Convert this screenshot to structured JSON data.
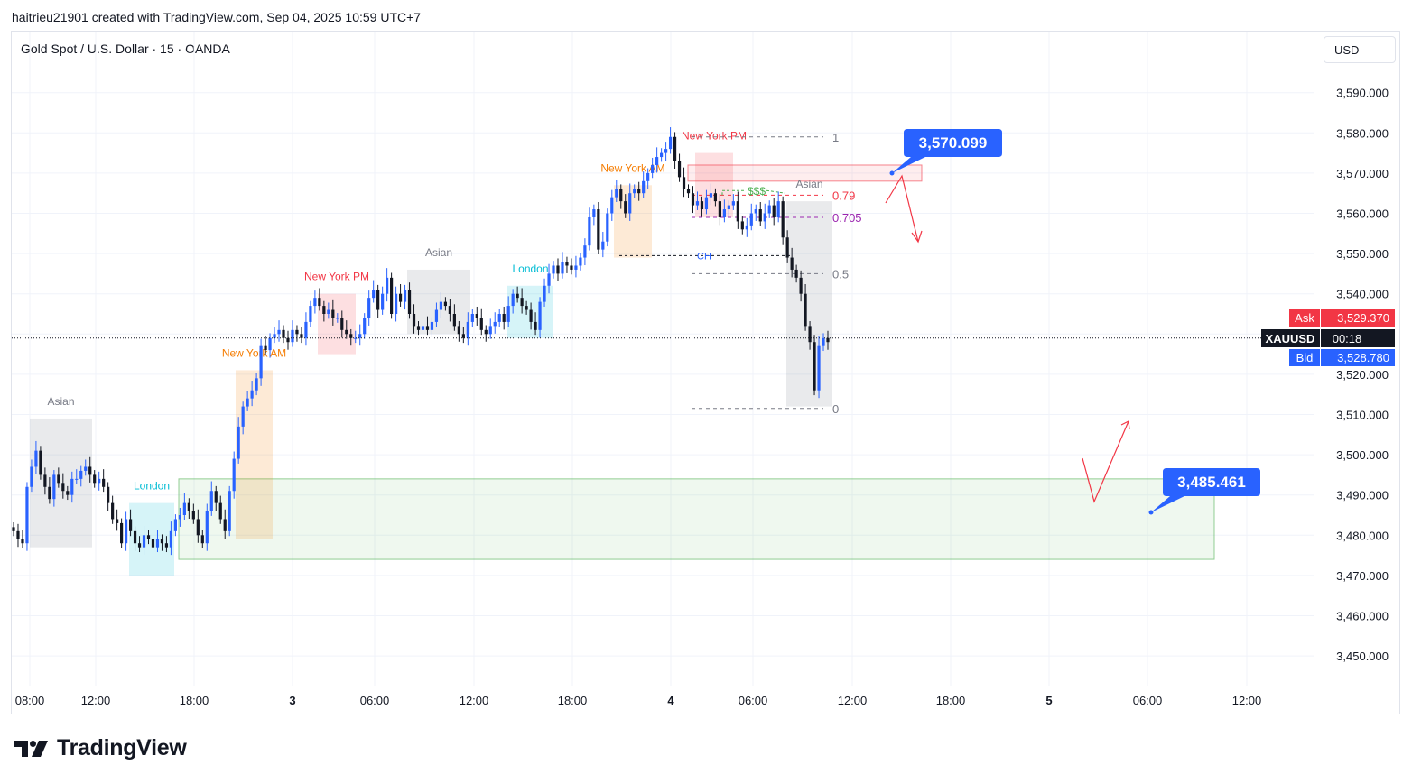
{
  "header": {
    "text": "haitrieu21901 created with TradingView.com, Sep 04, 2025 10:59 UTC+7"
  },
  "symbol": {
    "title": "Gold Spot / U.S. Dollar · 15 · OANDA"
  },
  "currency_button": {
    "label": "USD"
  },
  "logo": {
    "text": "TradingView"
  },
  "colors": {
    "up": "#2962ff",
    "down": "#131722",
    "ask": "#f23645",
    "bid": "#2962ff",
    "label_bg": "#2962ff",
    "demand_zone": "#4caf50",
    "supply_zone": "#f23645"
  },
  "chart_data": {
    "type": "candlestick",
    "y_axis": {
      "min": 3440,
      "max": 3600,
      "ticks": [
        3450,
        3460,
        3470,
        3480,
        3490,
        3500,
        3510,
        3520,
        3540,
        3550,
        3560,
        3570,
        3580,
        3590
      ],
      "tick_labels": [
        "3,450.000",
        "3,460.000",
        "3,470.000",
        "3,480.000",
        "3,490.000",
        "3,500.000",
        "3,510.000",
        "3,520.000",
        "3,540.000",
        "3,550.000",
        "3,560.000",
        "3,570.000",
        "3,580.000",
        "3,590.000"
      ]
    },
    "x_axis": {
      "labels": [
        "08:00",
        "12:00",
        "18:00",
        "3",
        "06:00",
        "12:00",
        "18:00",
        "4",
        "06:00",
        "12:00",
        "18:00",
        "5",
        "06:00",
        "12:00"
      ],
      "bold_labels": [
        "3",
        "4",
        "5"
      ]
    },
    "current_price": 3529.0,
    "ask": {
      "label": "Ask",
      "value": "3,529.370"
    },
    "bid": {
      "label": "Bid",
      "value": "3,528.780"
    },
    "symbol_tag": {
      "label": "XAUUSD",
      "countdown": "00:18"
    },
    "price_callouts": [
      {
        "text": "3,570.099",
        "price": 3570.099
      },
      {
        "text": "3,485.461",
        "price": 3485.461
      }
    ],
    "zones": [
      {
        "name": "demand",
        "top": 3494,
        "bottom": 3474
      },
      {
        "name": "supply",
        "top": 3572,
        "bottom": 3568
      }
    ],
    "sessions": [
      {
        "label": "Asian",
        "color": "#787b86",
        "top": 3509,
        "bottom": 3477
      },
      {
        "label": "London",
        "color": "#00bcd4",
        "top": 3488,
        "bottom": 3470
      },
      {
        "label": "New York AM",
        "color": "#f57c00",
        "top": 3521,
        "bottom": 3479
      },
      {
        "label": "New York PM",
        "color": "#f23645",
        "top": 3540,
        "bottom": 3525
      },
      {
        "label": "Asian",
        "color": "#787b86",
        "top": 3546,
        "bottom": 3530
      },
      {
        "label": "London",
        "color": "#00bcd4",
        "top": 3542,
        "bottom": 3529
      },
      {
        "label": "New York AM",
        "color": "#f57c00",
        "top": 3567,
        "bottom": 3549
      },
      {
        "label": "New York PM",
        "color": "#f23645",
        "top": 3575,
        "bottom": 3559
      },
      {
        "label": "Asian",
        "color": "#787b86",
        "top": 3563,
        "bottom": 3512
      }
    ],
    "fib_levels": [
      {
        "label": "1",
        "price": 3579,
        "color": "#787b86"
      },
      {
        "label": "0.79",
        "price": 3564.5,
        "color": "#f23645"
      },
      {
        "label": "0.705",
        "price": 3559,
        "color": "#9c27b0"
      },
      {
        "label": "0.5",
        "price": 3545,
        "color": "#787b86"
      },
      {
        "label": "0",
        "price": 3511.5,
        "color": "#787b86"
      }
    ],
    "annotations": [
      {
        "text": "CH",
        "price": 3549.5,
        "color": "#2962ff"
      },
      {
        "text": "$$$",
        "price": 3565,
        "color": "#4caf50"
      }
    ],
    "candles_close": [
      3481,
      3479,
      3478,
      3492,
      3497,
      3501,
      3495,
      3492,
      3489,
      3495,
      3493,
      3491,
      3490,
      3494,
      3494,
      3496,
      3497,
      3495,
      3493,
      3494,
      3492,
      3488,
      3484,
      3483,
      3478,
      3484,
      3481,
      3478,
      3477,
      3480,
      3479,
      3477,
      3479,
      3478,
      3477,
      3481,
      3484,
      3485,
      3488,
      3486,
      3484,
      3480,
      3478,
      3486,
      3491,
      3488,
      3484,
      3481,
      3491,
      3499,
      3507,
      3512,
      3514,
      3516,
      3519,
      3527,
      3526,
      3529,
      3530,
      3531,
      3529,
      3528,
      3531,
      3530,
      3529,
      3533,
      3537,
      3539,
      3537,
      3535,
      3536,
      3534,
      3534,
      3531,
      3530,
      3529,
      3529,
      3530,
      3534,
      3539,
      3541,
      3536,
      3540,
      3544,
      3535,
      3540,
      3538,
      3541,
      3535,
      3532,
      3531,
      3532,
      3531,
      3533,
      3536,
      3538,
      3537,
      3535,
      3532,
      3530,
      3529,
      3533,
      3535,
      3534,
      3531,
      3530,
      3532,
      3533,
      3535,
      3533,
      3537,
      3540,
      3539,
      3537,
      3536,
      3533,
      3531,
      3538,
      3542,
      3545,
      3547,
      3545,
      3548,
      3547,
      3546,
      3547,
      3549,
      3552,
      3559,
      3561,
      3551,
      3553,
      3560,
      3564,
      3566,
      3563,
      3560,
      3565,
      3566,
      3565,
      3568,
      3570,
      3572,
      3574,
      3575,
      3576,
      3579,
      3573,
      3569,
      3566,
      3565,
      3562,
      3563,
      3561,
      3564,
      3565,
      3563,
      3559,
      3561,
      3562,
      3563,
      3558,
      3556,
      3557,
      3560,
      3561,
      3558,
      3560,
      3562,
      3559,
      3563,
      3554,
      3549,
      3546,
      3544,
      3540,
      3532,
      3528,
      3516,
      3527,
      3529,
      3528
    ]
  }
}
